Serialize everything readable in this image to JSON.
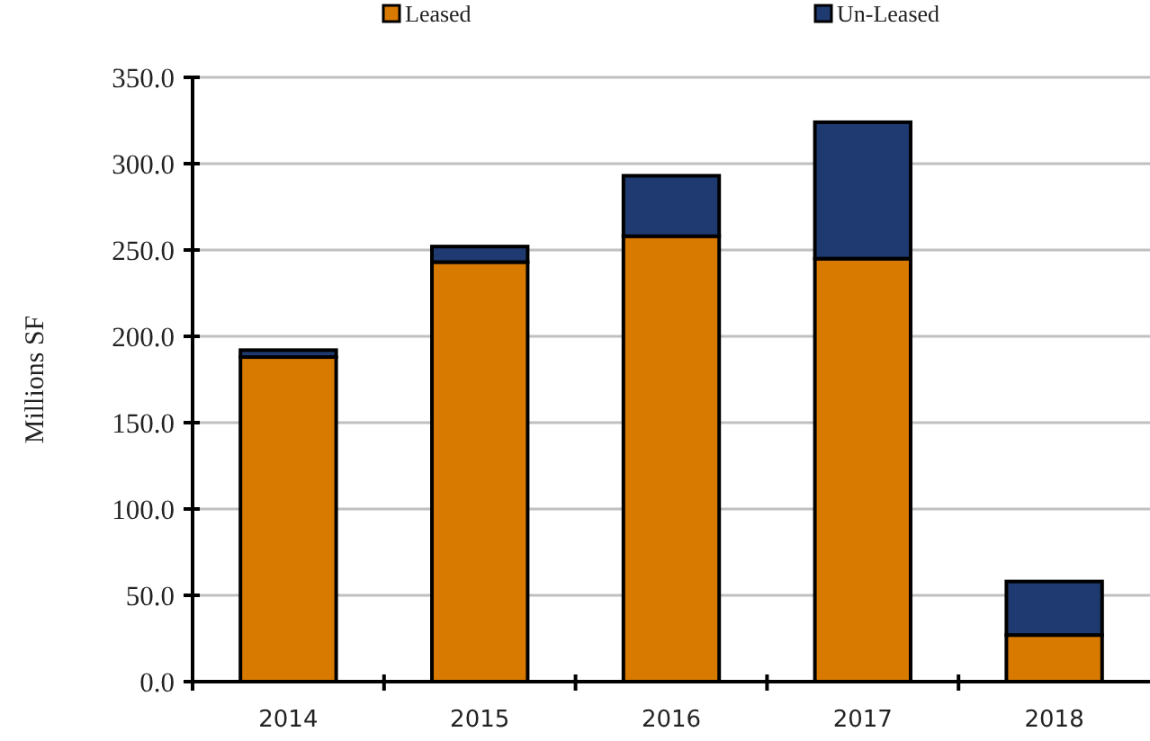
{
  "chart_data": {
    "type": "bar",
    "stacked": true,
    "ylabel": "Millions SF",
    "categories": [
      "2014",
      "2015",
      "2016",
      "2017",
      "2018"
    ],
    "series": [
      {
        "name": "Leased",
        "color": "#d97a00",
        "values": [
          188,
          243,
          258,
          245,
          27
        ]
      },
      {
        "name": "Un-Leased",
        "color": "#1f3a70",
        "values": [
          4,
          9,
          35,
          79,
          31
        ]
      }
    ],
    "ylim": [
      0,
      350
    ],
    "yticks": [
      {
        "value": 0,
        "label": "0.0"
      },
      {
        "value": 50,
        "label": "50.0"
      },
      {
        "value": 100,
        "label": "100.0"
      },
      {
        "value": 150,
        "label": "150.0"
      },
      {
        "value": 200,
        "label": "200.0"
      },
      {
        "value": 250,
        "label": "250.0"
      },
      {
        "value": 300,
        "label": "300.0"
      },
      {
        "value": 350,
        "label": "350.0"
      }
    ],
    "grid": "y",
    "legend": "top"
  }
}
